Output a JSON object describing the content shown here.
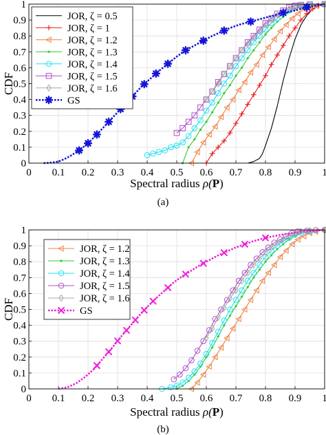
{
  "chart_data": [
    {
      "panel_label": "(a)",
      "type": "line",
      "xlabel": "Spectral radius",
      "xlabel_symbol": "ρ(",
      "xlabel_bold": "P",
      "xlabel_close": ")",
      "ylabel": "CDF",
      "xlim": [
        0,
        1
      ],
      "ylim": [
        0,
        1
      ],
      "xticks": [
        "0",
        "0.1",
        "0.2",
        "0.3",
        "0.4",
        "0.5",
        "0.6",
        "0.7",
        "0.8",
        "0.9",
        "1"
      ],
      "yticks": [
        "0",
        "0.1",
        "0.2",
        "0.3",
        "0.4",
        "0.5",
        "0.6",
        "0.7",
        "0.8",
        "0.9",
        "1"
      ],
      "grid": true,
      "legend_position": "top-left",
      "series": [
        {
          "name": "JOR, ζ = 0.5",
          "color": "#000000",
          "marker": "none",
          "dashed": false,
          "x": [
            0.74,
            0.76,
            0.78,
            0.79,
            0.8,
            0.82,
            0.84,
            0.86,
            0.88,
            0.9,
            0.92,
            0.94,
            0.96,
            0.98,
            1.0
          ],
          "y": [
            0,
            0.01,
            0.03,
            0.06,
            0.11,
            0.22,
            0.36,
            0.52,
            0.66,
            0.78,
            0.87,
            0.93,
            0.97,
            0.99,
            1.0
          ]
        },
        {
          "name": "JOR, ζ = 1",
          "color": "#e8181a",
          "marker": "plus",
          "dashed": false,
          "x": [
            0.6,
            0.62,
            0.64,
            0.66,
            0.68,
            0.7,
            0.72,
            0.74,
            0.76,
            0.78,
            0.8,
            0.82,
            0.84,
            0.86,
            0.88,
            0.9,
            0.92,
            0.94,
            0.96,
            0.98,
            1.0
          ],
          "y": [
            0.0,
            0.06,
            0.1,
            0.14,
            0.19,
            0.25,
            0.31,
            0.37,
            0.43,
            0.49,
            0.55,
            0.62,
            0.68,
            0.74,
            0.8,
            0.85,
            0.9,
            0.94,
            0.97,
            0.99,
            1.0
          ]
        },
        {
          "name": "JOR, ζ = 1.2",
          "color": "#f08040",
          "marker": "triangle-left",
          "dashed": false,
          "x": [
            0.55,
            0.57,
            0.59,
            0.61,
            0.63,
            0.65,
            0.67,
            0.69,
            0.71,
            0.73,
            0.75,
            0.77,
            0.79,
            0.81,
            0.83,
            0.85,
            0.87,
            0.89,
            0.91,
            0.93,
            0.95,
            0.97,
            1.0
          ],
          "y": [
            0.0,
            0.07,
            0.13,
            0.18,
            0.23,
            0.29,
            0.35,
            0.4,
            0.46,
            0.51,
            0.57,
            0.62,
            0.68,
            0.73,
            0.78,
            0.83,
            0.87,
            0.91,
            0.94,
            0.97,
            0.98,
            0.99,
            1.0
          ]
        },
        {
          "name": "JOR, ζ = 1.3",
          "color": "#2ecc2e",
          "marker": "dot",
          "dashed": false,
          "x": [
            0.52,
            0.54,
            0.56,
            0.58,
            0.6,
            0.62,
            0.64,
            0.66,
            0.68,
            0.7,
            0.72,
            0.74,
            0.76,
            0.78,
            0.8,
            0.82,
            0.84,
            0.86,
            0.88,
            0.9,
            0.92,
            0.94,
            0.96,
            1.0
          ],
          "y": [
            0.0,
            0.1,
            0.15,
            0.21,
            0.26,
            0.32,
            0.38,
            0.44,
            0.49,
            0.55,
            0.6,
            0.66,
            0.71,
            0.76,
            0.81,
            0.85,
            0.89,
            0.92,
            0.95,
            0.97,
            0.98,
            0.99,
            0.995,
            1.0
          ]
        },
        {
          "name": "JOR, ζ = 1.4",
          "color": "#1ee0f0",
          "marker": "circle",
          "dashed": false,
          "x": [
            0.4,
            0.42,
            0.44,
            0.46,
            0.48,
            0.5,
            0.52,
            0.54,
            0.56,
            0.58,
            0.6,
            0.62,
            0.64,
            0.66,
            0.68,
            0.7,
            0.72,
            0.74,
            0.76,
            0.78,
            0.8,
            0.82,
            0.84,
            0.86,
            0.88,
            0.9,
            0.92,
            0.95,
            1.0
          ],
          "y": [
            0.05,
            0.06,
            0.07,
            0.08,
            0.1,
            0.11,
            0.13,
            0.17,
            0.22,
            0.27,
            0.33,
            0.38,
            0.44,
            0.5,
            0.55,
            0.61,
            0.66,
            0.71,
            0.76,
            0.8,
            0.84,
            0.88,
            0.91,
            0.94,
            0.96,
            0.98,
            0.99,
            0.995,
            1.0
          ]
        },
        {
          "name": "JOR, ζ = 1.5",
          "color": "#b04ec8",
          "marker": "square",
          "dashed": false,
          "x": [
            0.5,
            0.52,
            0.54,
            0.56,
            0.58,
            0.6,
            0.62,
            0.64,
            0.66,
            0.68,
            0.7,
            0.72,
            0.74,
            0.76,
            0.78,
            0.8,
            0.82,
            0.84,
            0.86,
            0.88,
            0.9,
            0.92,
            0.95,
            1.0
          ],
          "y": [
            0.19,
            0.22,
            0.26,
            0.3,
            0.35,
            0.4,
            0.45,
            0.51,
            0.56,
            0.61,
            0.66,
            0.71,
            0.76,
            0.8,
            0.84,
            0.88,
            0.91,
            0.94,
            0.96,
            0.98,
            0.99,
            0.995,
            0.998,
            1.0
          ]
        },
        {
          "name": "JOR, ζ = 1.6",
          "color": "#a8a8a8",
          "marker": "diamond",
          "dashed": false,
          "x": [
            0.6,
            0.62,
            0.64,
            0.66,
            0.68,
            0.7,
            0.72,
            0.74,
            0.76,
            0.78,
            0.8,
            0.82,
            0.84,
            0.86,
            0.88,
            0.9,
            0.92,
            0.95,
            1.0
          ],
          "y": [
            0.4,
            0.45,
            0.5,
            0.56,
            0.61,
            0.66,
            0.71,
            0.75,
            0.79,
            0.83,
            0.87,
            0.9,
            0.93,
            0.95,
            0.97,
            0.98,
            0.99,
            0.995,
            1.0
          ]
        },
        {
          "name": "GS",
          "color": "#1414d8",
          "marker": "star",
          "dashed": true,
          "x": [
            0.05,
            0.07,
            0.1,
            0.12,
            0.14,
            0.17,
            0.2,
            0.23,
            0.26,
            0.29,
            0.32,
            0.35,
            0.38,
            0.41,
            0.44,
            0.47,
            0.5,
            0.53,
            0.56,
            0.59,
            0.62,
            0.65,
            0.68,
            0.71,
            0.74,
            0.77,
            0.8,
            0.83,
            0.86,
            0.89,
            0.92,
            0.95,
            1.0
          ],
          "y": [
            0.0,
            0.002,
            0.01,
            0.025,
            0.045,
            0.08,
            0.125,
            0.18,
            0.24,
            0.3,
            0.36,
            0.42,
            0.48,
            0.53,
            0.58,
            0.625,
            0.67,
            0.71,
            0.74,
            0.77,
            0.8,
            0.825,
            0.85,
            0.87,
            0.885,
            0.9,
            0.915,
            0.93,
            0.945,
            0.955,
            0.97,
            0.985,
            1.0
          ],
          "marker_x": [
            0.17,
            0.2,
            0.23,
            0.27,
            0.31,
            0.35,
            0.39,
            0.43,
            0.47,
            0.53,
            0.59,
            0.66,
            0.75,
            0.86,
            0.94
          ]
        }
      ]
    },
    {
      "panel_label": "(b)",
      "type": "line",
      "xlabel": "Spectral radius",
      "xlabel_symbol": "ρ(",
      "xlabel_bold": "P",
      "xlabel_close": ")",
      "ylabel": "CDF",
      "xlim": [
        0,
        1
      ],
      "ylim": [
        0,
        1
      ],
      "xticks": [
        "0",
        "0.1",
        "0.2",
        "0.3",
        "0.4",
        "0.5",
        "0.6",
        "0.7",
        "0.8",
        "0.9",
        "1"
      ],
      "yticks": [
        "0",
        "0.1",
        "0.2",
        "0.3",
        "0.4",
        "0.5",
        "0.6",
        "0.7",
        "0.8",
        "0.9",
        "1"
      ],
      "grid": true,
      "legend_position": "top-left",
      "series": [
        {
          "name": "JOR, ζ = 1.2",
          "color": "#f08040",
          "marker": "triangle-left",
          "dashed": false,
          "x": [
            0.55,
            0.57,
            0.59,
            0.61,
            0.63,
            0.65,
            0.67,
            0.69,
            0.71,
            0.73,
            0.75,
            0.77,
            0.79,
            0.81,
            0.83,
            0.85,
            0.87,
            0.89,
            0.91,
            0.93,
            0.95,
            0.97,
            1.0
          ],
          "y": [
            0.0,
            0.04,
            0.09,
            0.14,
            0.2,
            0.26,
            0.32,
            0.38,
            0.44,
            0.5,
            0.56,
            0.62,
            0.68,
            0.73,
            0.78,
            0.83,
            0.87,
            0.91,
            0.94,
            0.96,
            0.98,
            0.99,
            1.0
          ]
        },
        {
          "name": "JOR, ζ = 1.3",
          "color": "#2ecc2e",
          "marker": "dot",
          "dashed": false,
          "x": [
            0.5,
            0.52,
            0.54,
            0.56,
            0.58,
            0.6,
            0.62,
            0.64,
            0.66,
            0.68,
            0.7,
            0.72,
            0.74,
            0.76,
            0.78,
            0.8,
            0.82,
            0.84,
            0.86,
            0.88,
            0.9,
            0.92,
            0.95,
            1.0
          ],
          "y": [
            0.0,
            0.02,
            0.05,
            0.09,
            0.14,
            0.2,
            0.26,
            0.33,
            0.4,
            0.46,
            0.52,
            0.58,
            0.64,
            0.7,
            0.75,
            0.8,
            0.84,
            0.88,
            0.91,
            0.94,
            0.96,
            0.98,
            0.99,
            1.0
          ]
        },
        {
          "name": "JOR, ζ = 1.4",
          "color": "#1ee0f0",
          "marker": "circle",
          "dashed": false,
          "x": [
            0.45,
            0.48,
            0.5,
            0.52,
            0.54,
            0.56,
            0.58,
            0.6,
            0.62,
            0.64,
            0.66,
            0.68,
            0.7,
            0.72,
            0.74,
            0.76,
            0.78,
            0.8,
            0.82,
            0.84,
            0.86,
            0.88,
            0.9,
            0.92,
            0.95,
            1.0
          ],
          "y": [
            0.0,
            0.01,
            0.02,
            0.04,
            0.07,
            0.11,
            0.16,
            0.22,
            0.29,
            0.36,
            0.43,
            0.5,
            0.56,
            0.62,
            0.68,
            0.73,
            0.78,
            0.83,
            0.87,
            0.9,
            0.93,
            0.95,
            0.97,
            0.98,
            0.99,
            1.0
          ]
        },
        {
          "name": "JOR, ζ = 1.5",
          "color": "#b04ec8",
          "marker": "circle",
          "dashed": false,
          "x": [
            0.49,
            0.51,
            0.53,
            0.55,
            0.57,
            0.59,
            0.61,
            0.63,
            0.65,
            0.67,
            0.69,
            0.71,
            0.73,
            0.75,
            0.77,
            0.79,
            0.81,
            0.83,
            0.85,
            0.87,
            0.89,
            0.91,
            0.94,
            0.97,
            1.0
          ],
          "y": [
            0.06,
            0.09,
            0.13,
            0.18,
            0.24,
            0.3,
            0.37,
            0.44,
            0.5,
            0.56,
            0.62,
            0.68,
            0.73,
            0.78,
            0.82,
            0.86,
            0.89,
            0.92,
            0.94,
            0.96,
            0.98,
            0.99,
            0.995,
            0.998,
            1.0
          ]
        },
        {
          "name": "JOR, ζ = 1.6",
          "color": "#a8a8a8",
          "marker": "diamond",
          "dashed": false,
          "x": [
            0.6,
            0.62,
            0.64,
            0.66,
            0.68,
            0.7,
            0.72,
            0.74,
            0.76,
            0.78,
            0.8,
            0.82,
            0.84,
            0.86,
            0.88,
            0.9,
            0.92,
            0.95,
            1.0
          ],
          "y": [
            0.32,
            0.38,
            0.45,
            0.51,
            0.57,
            0.62,
            0.68,
            0.73,
            0.78,
            0.82,
            0.86,
            0.89,
            0.92,
            0.94,
            0.96,
            0.98,
            0.99,
            0.995,
            1.0
          ]
        },
        {
          "name": "GS",
          "color": "#ee20d8",
          "marker": "x",
          "dashed": true,
          "x": [
            0.1,
            0.13,
            0.16,
            0.19,
            0.22,
            0.25,
            0.28,
            0.31,
            0.34,
            0.37,
            0.4,
            0.43,
            0.46,
            0.49,
            0.52,
            0.55,
            0.58,
            0.61,
            0.64,
            0.67,
            0.7,
            0.73,
            0.76,
            0.8,
            0.84,
            0.88,
            0.92,
            0.96,
            1.0
          ],
          "y": [
            0.0,
            0.01,
            0.035,
            0.075,
            0.125,
            0.19,
            0.255,
            0.325,
            0.39,
            0.455,
            0.515,
            0.57,
            0.62,
            0.67,
            0.71,
            0.745,
            0.78,
            0.81,
            0.84,
            0.865,
            0.89,
            0.91,
            0.93,
            0.95,
            0.965,
            0.978,
            0.988,
            0.995,
            1.0
          ],
          "marker_x": [
            0.23,
            0.27,
            0.3,
            0.33,
            0.36,
            0.39,
            0.42,
            0.47,
            0.53,
            0.59,
            0.66,
            0.73,
            0.8
          ]
        }
      ]
    }
  ]
}
